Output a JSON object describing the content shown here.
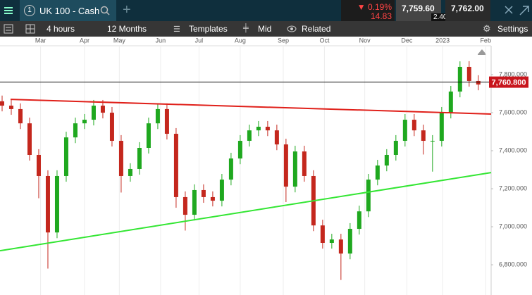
{
  "header": {
    "tab_number": "1",
    "instrument": "UK 100 - Cash",
    "change_pct": "▼ 0.19%",
    "change": "14.83",
    "bid": "7,759.60",
    "ask": "7,762.00",
    "spread": "2.40"
  },
  "toolbar": {
    "interval": "4 hours",
    "range": "12 Months",
    "templates": "Templates",
    "price_type": "Mid",
    "related": "Related",
    "settings": "Settings"
  },
  "chart_data": {
    "type": "candlestick",
    "open": [
      7660,
      7637,
      7619,
      7544,
      7378,
      7267,
      6970,
      7267,
      7470,
      7544,
      7563,
      7637,
      7600,
      7452,
      7267,
      7304,
      7415,
      7544,
      7619,
      7489,
      7156,
      7063,
      7193,
      7156,
      7137,
      7248,
      7359,
      7452,
      7507,
      7526,
      7507,
      7433,
      7211,
      7396,
      7267,
      7007,
      6915,
      6933,
      6859,
      6989,
      7081,
      7248,
      7322,
      7378,
      7452,
      7563,
      7507,
      7452,
      7452,
      7600,
      7711,
      7841,
      7767
    ],
    "high": [
      7690,
      7667,
      7649,
      7574,
      7408,
      7297,
      7297,
      7500,
      7574,
      7593,
      7667,
      7667,
      7630,
      7482,
      7334,
      7445,
      7574,
      7649,
      7649,
      7519,
      7186,
      7223,
      7223,
      7186,
      7278,
      7389,
      7482,
      7537,
      7556,
      7556,
      7537,
      7463,
      7426,
      7426,
      7297,
      7037,
      6963,
      6963,
      7019,
      7111,
      7278,
      7352,
      7408,
      7482,
      7593,
      7593,
      7537,
      7482,
      7630,
      7741,
      7870,
      7871,
      7797
    ],
    "low": [
      7607,
      7589,
      7514,
      7348,
      7150,
      6780,
      6940,
      7237,
      7440,
      7514,
      7533,
      7570,
      7422,
      7180,
      7237,
      7274,
      7385,
      7514,
      7459,
      7100,
      6980,
      7033,
      7126,
      7107,
      7107,
      7218,
      7329,
      7422,
      7477,
      7477,
      7403,
      7130,
      7181,
      7237,
      6977,
      6885,
      6885,
      6720,
      6829,
      6959,
      7051,
      7218,
      7292,
      7348,
      7422,
      7477,
      7380,
      7290,
      7422,
      7570,
      7681,
      7737,
      7718
    ],
    "close": [
      7637,
      7619,
      7544,
      7378,
      7267,
      6970,
      7267,
      7470,
      7544,
      7563,
      7637,
      7600,
      7452,
      7267,
      7304,
      7415,
      7544,
      7619,
      7489,
      7156,
      7063,
      7193,
      7156,
      7137,
      7248,
      7359,
      7452,
      7507,
      7526,
      7507,
      7433,
      7211,
      7396,
      7267,
      7007,
      6915,
      6933,
      6859,
      6989,
      7081,
      7248,
      7322,
      7378,
      7452,
      7563,
      7507,
      7452,
      7452,
      7600,
      7711,
      7841,
      7767,
      7748
    ],
    "up_color": "#1fa81f",
    "down_color": "#c4271d",
    "xlim": [
      -0.23,
      53.4
    ],
    "xticks": [
      {
        "value": 4.2,
        "label": "Mar"
      },
      {
        "value": 9,
        "label": "Apr"
      },
      {
        "value": 12.8,
        "label": "May"
      },
      {
        "value": 17.3,
        "label": "Jun"
      },
      {
        "value": 21.5,
        "label": "Jul"
      },
      {
        "value": 26,
        "label": "Aug"
      },
      {
        "value": 30.7,
        "label": "Sep"
      },
      {
        "value": 35.2,
        "label": "Oct"
      },
      {
        "value": 39.6,
        "label": "Nov"
      },
      {
        "value": 44.2,
        "label": "Dec"
      },
      {
        "value": 48.1,
        "label": "2023"
      },
      {
        "value": 52.8,
        "label": "Feb"
      }
    ],
    "ylim": [
      6641,
      7952
    ],
    "yticks": [
      {
        "value": 6800,
        "label": "6,800.000"
      },
      {
        "value": 7000,
        "label": "7,000.000"
      },
      {
        "value": 7200,
        "label": "7,200.000"
      },
      {
        "value": 7400,
        "label": "7,400.000"
      },
      {
        "value": 7600,
        "label": "7,600.000"
      },
      {
        "value": 7800,
        "label": "7,800.000"
      }
    ],
    "last_price": 7760.8,
    "last_price_label": "7,760.800",
    "trendlines": [
      {
        "color": "#e0201a",
        "x": [
          0.92,
          53.4
        ],
        "y": [
          7670,
          7593
        ]
      },
      {
        "color": "#33e633",
        "x": [
          -0.23,
          53.4
        ],
        "y": [
          6874,
          7285
        ]
      }
    ]
  }
}
